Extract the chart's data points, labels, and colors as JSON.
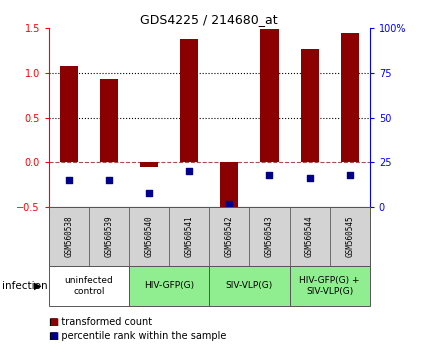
{
  "title": "GDS4225 / 214680_at",
  "samples": [
    "GSM560538",
    "GSM560539",
    "GSM560540",
    "GSM560541",
    "GSM560542",
    "GSM560543",
    "GSM560544",
    "GSM560545"
  ],
  "transformed_count": [
    1.08,
    0.93,
    -0.05,
    1.38,
    -0.52,
    1.49,
    1.27,
    1.45
  ],
  "percentile_rank": [
    15,
    15,
    8,
    20,
    2,
    18,
    16,
    18
  ],
  "ylim_left": [
    -0.5,
    1.5
  ],
  "ylim_right": [
    0,
    100
  ],
  "yticks_left": [
    -0.5,
    0.0,
    0.5,
    1.0,
    1.5
  ],
  "yticks_right": [
    0,
    25,
    50,
    75,
    100
  ],
  "ytick_labels_right": [
    "0",
    "25",
    "50",
    "75",
    "100%"
  ],
  "groups": [
    {
      "label": "uninfected\ncontrol",
      "start": 0,
      "end": 2,
      "color": "#ffffff"
    },
    {
      "label": "HIV-GFP(G)",
      "start": 2,
      "end": 4,
      "color": "#90ee90"
    },
    {
      "label": "SIV-VLP(G)",
      "start": 4,
      "end": 6,
      "color": "#90ee90"
    },
    {
      "label": "HIV-GFP(G) +\nSIV-VLP(G)",
      "start": 6,
      "end": 8,
      "color": "#90ee90"
    }
  ],
  "bar_color": "#8B0000",
  "dot_color": "#00008B",
  "dotted_lines": [
    0.5,
    1.0
  ],
  "infection_label": "infection",
  "legend_items": [
    {
      "color": "#8B0000",
      "label": "transformed count"
    },
    {
      "color": "#00008B",
      "label": "percentile rank within the sample"
    }
  ],
  "background_color": "#ffffff",
  "plot_bg_color": "#ffffff",
  "bar_width": 0.45,
  "dot_size": 22
}
